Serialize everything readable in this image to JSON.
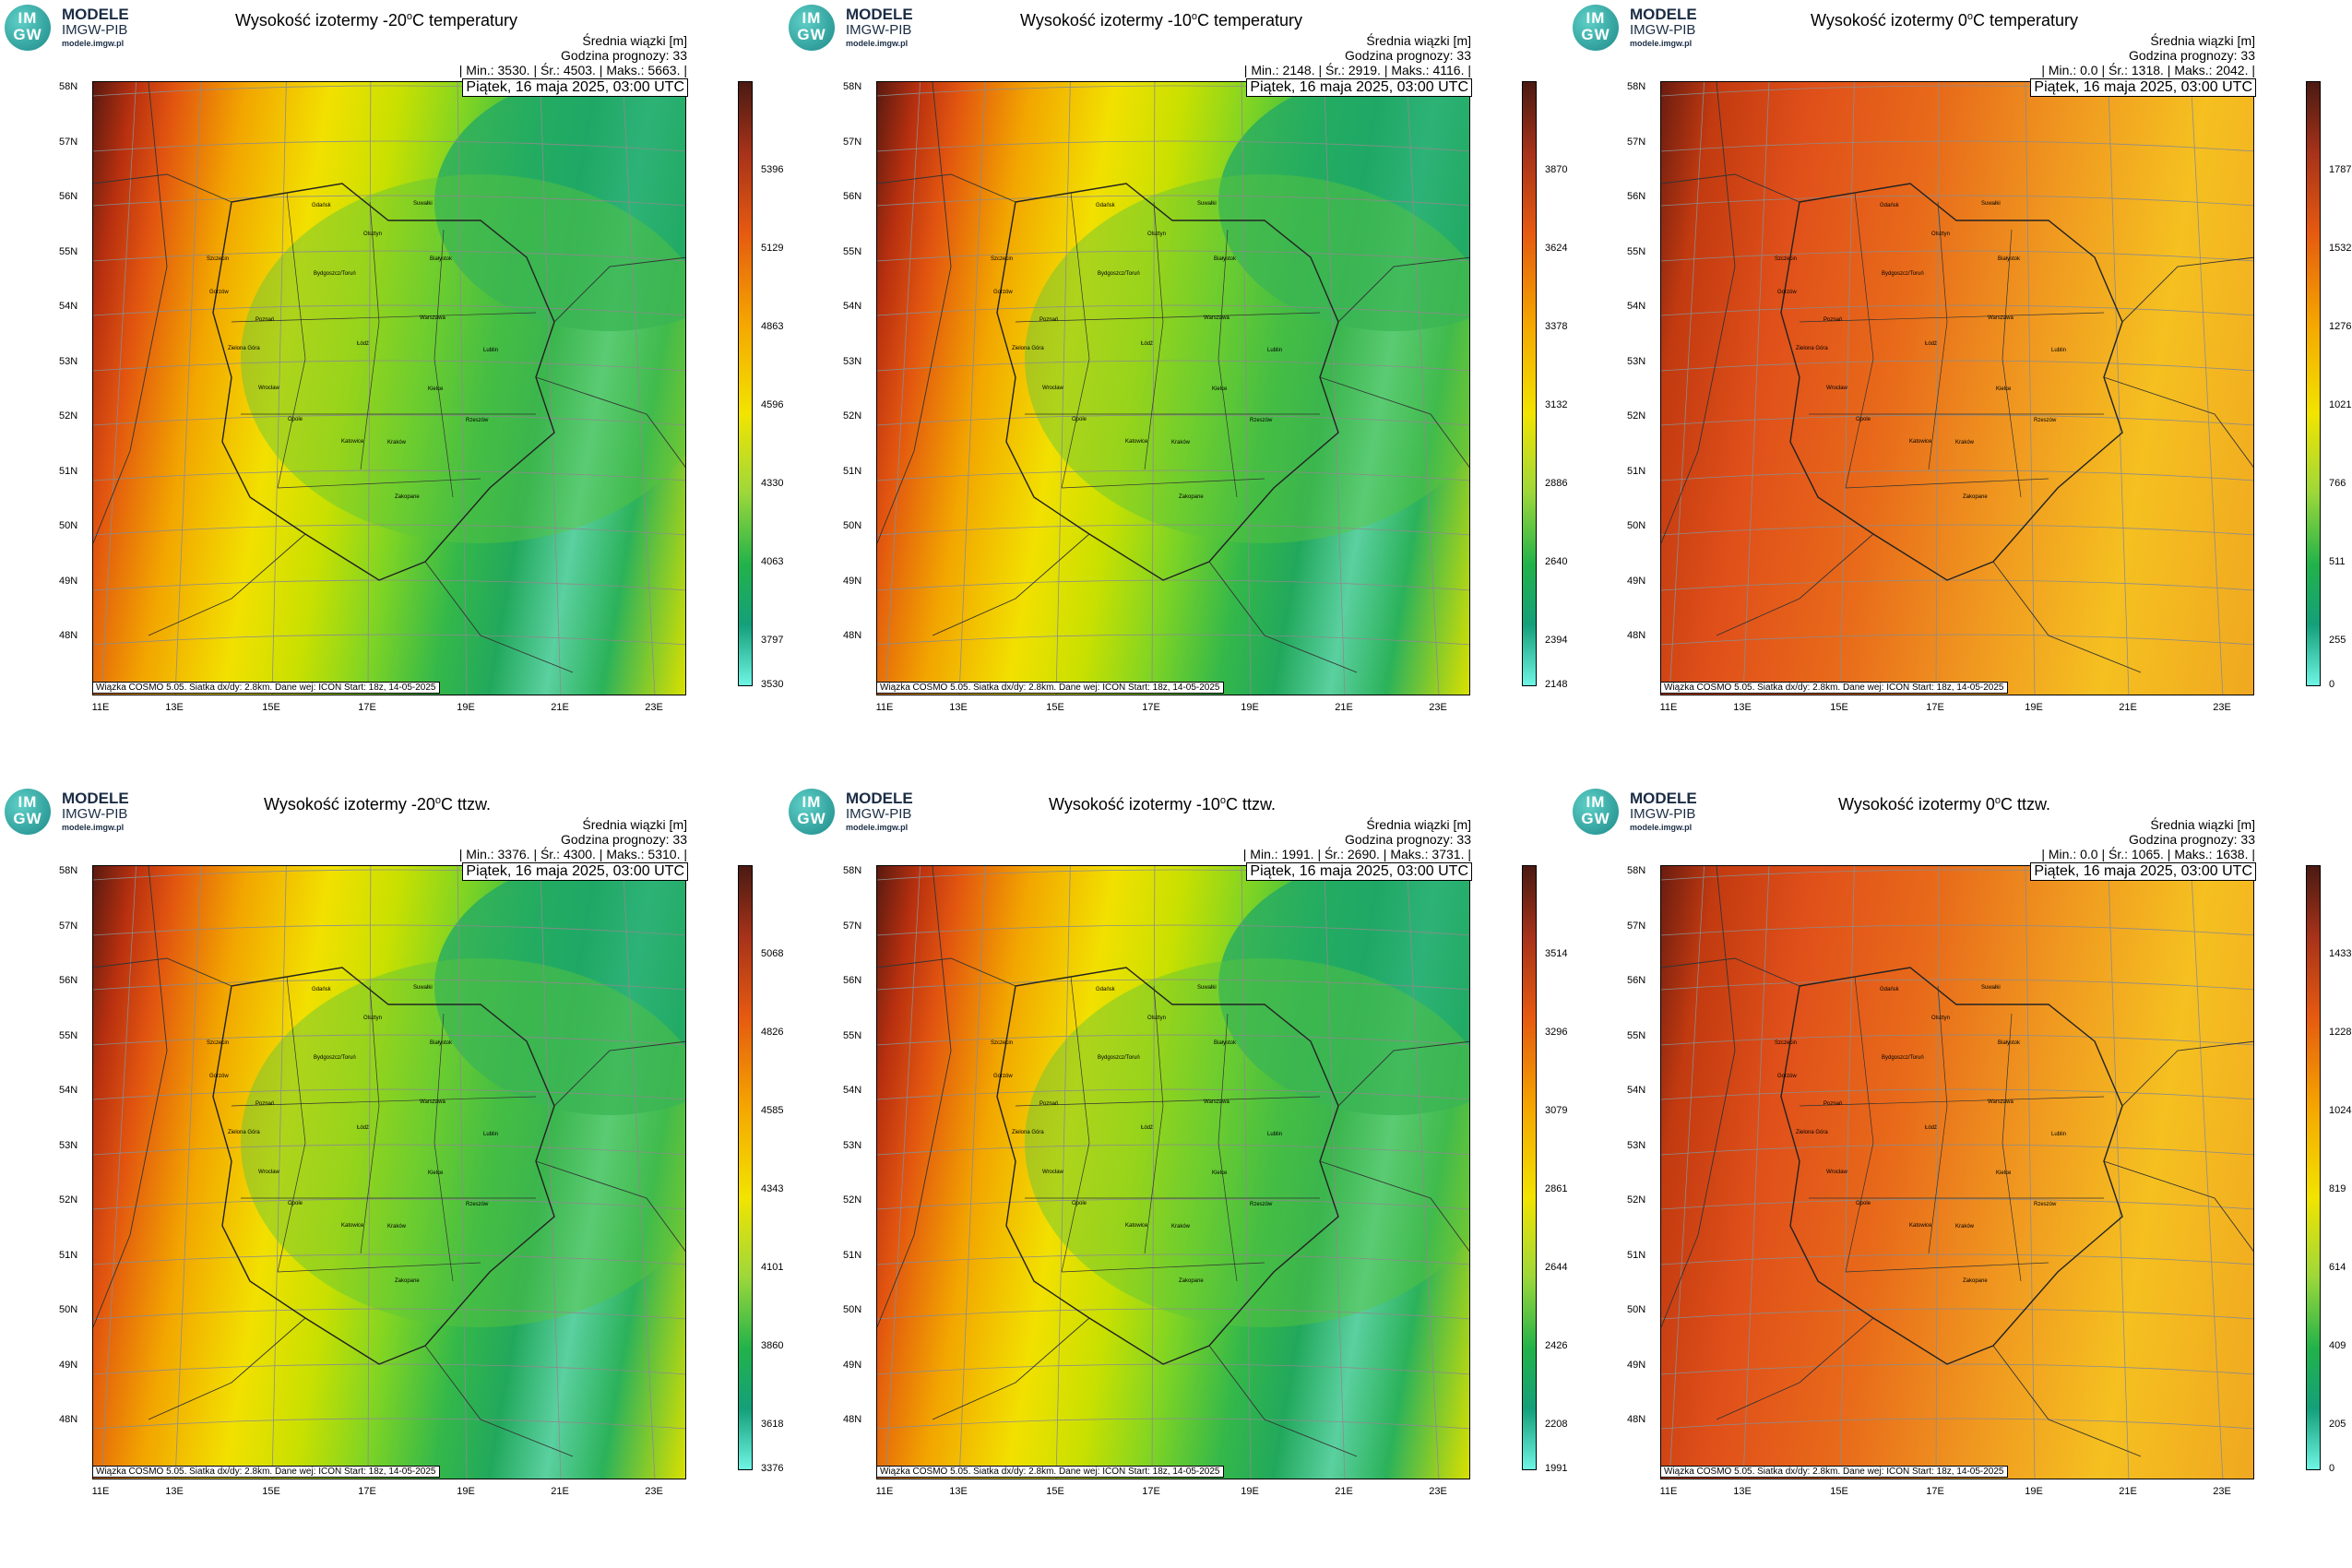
{
  "logo": {
    "line1": "MODELE",
    "line2": "IMGW-PIB",
    "line3": "modele.imgw.pl",
    "mark": "IM GW"
  },
  "header_common": {
    "unit_line": "Średnia wiązki [m]",
    "forecast_hour": "Godzina prognozy: 33",
    "date": "Piątek, 16 maja 2025, 03:00 UTC",
    "footer": "Wiązka COSMO 5.05. Siatka dx/dy: 2.8km. Dane wej: ICON Start: 18z, 14-05-2025"
  },
  "lat_labels": [
    "58N",
    "57N",
    "56N",
    "55N",
    "54N",
    "53N",
    "52N",
    "51N",
    "50N",
    "49N",
    "48N"
  ],
  "lon_labels": [
    "11E",
    "13E",
    "15E",
    "17E",
    "19E",
    "21E",
    "23E"
  ],
  "cities": [
    "Gdańsk",
    "Olsztyn",
    "Suwałki",
    "Szczecin",
    "Białystok",
    "Bydgoszcz/Toruń",
    "Gorzów",
    "Poznań",
    "Warszawa",
    "Zielona Góra",
    "Łódź",
    "Lublin",
    "Wrocław",
    "Kielce",
    "Opole",
    "Rzeszów",
    "Katowice",
    "Kraków",
    "Zakopane"
  ],
  "panels": [
    {
      "title_pre": "Wysokość izotermy -20",
      "title_post": "C temperatury",
      "stats": "| Min.:     3530. | Śr.:     4503. | Maks.:     5663. |",
      "ticks": [
        "5396",
        "5129",
        "4863",
        "4596",
        "4330",
        "4063",
        "3797",
        "3530"
      ],
      "palette": "warm"
    },
    {
      "title_pre": "Wysokość izotermy -10",
      "title_post": "C temperatury",
      "stats": "| Min.:     2148. | Śr.:     2919. | Maks.:     4116. |",
      "ticks": [
        "3870",
        "3624",
        "3378",
        "3132",
        "2886",
        "2640",
        "2394",
        "2148"
      ],
      "palette": "warm"
    },
    {
      "title_pre": "Wysokość izotermy 0",
      "title_post": "C temperatury",
      "stats": "| Min.:     0.0 | Śr.:     1318. | Maks.:     2042. |",
      "ticks": [
        "1787",
        "1532",
        "1276",
        "1021",
        "766",
        "511",
        "255",
        "0"
      ],
      "palette": "hot"
    },
    {
      "title_pre": "Wysokość izotermy -20",
      "title_post": "C ttzw.",
      "stats": "| Min.:     3376. | Śr.:     4300. | Maks.:     5310. |",
      "ticks": [
        "5068",
        "4826",
        "4585",
        "4343",
        "4101",
        "3860",
        "3618",
        "3376"
      ],
      "palette": "warm"
    },
    {
      "title_pre": "Wysokość izotermy -10",
      "title_post": "C ttzw.",
      "stats": "| Min.:     1991. | Śr.:     2690. | Maks.:     3731. |",
      "ticks": [
        "3514",
        "3296",
        "3079",
        "2861",
        "2644",
        "2426",
        "2208",
        "1991"
      ],
      "palette": "warm"
    },
    {
      "title_pre": "Wysokość izotermy 0",
      "title_post": "C ttzw.",
      "stats": "| Min.:     0.0 | Śr.:     1065. | Maks.:     1638. |",
      "ticks": [
        "1433",
        "1228",
        "1024",
        "819",
        "614",
        "409",
        "205",
        "0"
      ],
      "palette": "hot"
    }
  ],
  "degree_symbol": "o",
  "colors": {
    "cbar_top": "#4a1a12",
    "cbar_mid": "#f2e400",
    "cbar_low": "#22b24a",
    "cbar_bottom": "#6ef5e4"
  }
}
